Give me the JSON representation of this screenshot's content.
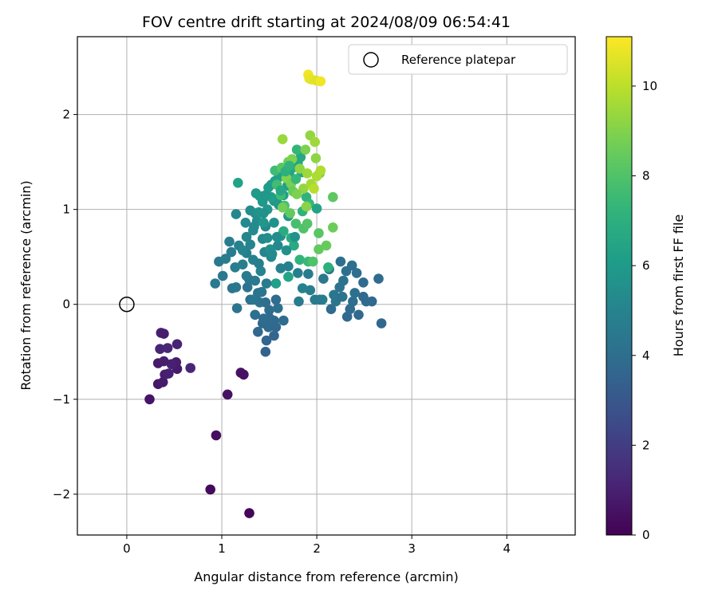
{
  "chart_data": {
    "type": "scatter",
    "title": "FOV centre drift starting at 2024/08/09 06:54:41",
    "xlabel": "Angular distance from reference (arcmin)",
    "ylabel": "Rotation from reference (arcmin)",
    "xlim": [
      -0.52,
      4.72
    ],
    "ylim": [
      -2.43,
      2.82
    ],
    "xticks": [
      0,
      1,
      2,
      3,
      4
    ],
    "yticks": [
      -2,
      -1,
      0,
      1,
      2
    ],
    "xtick_labels": [
      "0",
      "1",
      "2",
      "3",
      "4"
    ],
    "ytick_labels": [
      "−2",
      "−1",
      "0",
      "1",
      "2"
    ],
    "grid": true,
    "legend": {
      "placement": "top-right",
      "entries": [
        "Reference platepar"
      ]
    },
    "reference_point": {
      "x": 0,
      "y": 0,
      "marker": "open-circle"
    },
    "colorbar": {
      "label": "Hours from first FF file",
      "min": 0,
      "max": 11.1,
      "ticks": [
        0,
        2,
        4,
        6,
        8,
        10
      ],
      "tick_labels": [
        "0",
        "2",
        "4",
        "6",
        "8",
        "10"
      ],
      "colormap": "viridis"
    },
    "series": [
      {
        "columns": [
          "x",
          "y",
          "hours"
        ],
        "points": [
          [
            1.29,
            -2.2,
            0.2
          ],
          [
            0.88,
            -1.95,
            0.3
          ],
          [
            0.94,
            -1.38,
            0.4
          ],
          [
            1.06,
            -0.95,
            0.5
          ],
          [
            0.24,
            -1.0,
            0.6
          ],
          [
            1.2,
            -0.72,
            0.6
          ],
          [
            1.23,
            -0.74,
            0.5
          ],
          [
            0.33,
            -0.84,
            0.7
          ],
          [
            0.38,
            -0.82,
            0.8
          ],
          [
            0.4,
            -0.74,
            0.9
          ],
          [
            0.44,
            -0.73,
            1.0
          ],
          [
            0.53,
            -0.68,
            0.8
          ],
          [
            0.52,
            -0.61,
            0.9
          ],
          [
            0.47,
            -0.63,
            1.0
          ],
          [
            0.33,
            -0.62,
            0.8
          ],
          [
            0.39,
            -0.6,
            0.9
          ],
          [
            0.35,
            -0.47,
            1.1
          ],
          [
            0.43,
            -0.46,
            1.2
          ],
          [
            0.53,
            -0.42,
            1.1
          ],
          [
            0.36,
            -0.3,
            1.0
          ],
          [
            0.39,
            -0.31,
            0.9
          ],
          [
            0.67,
            -0.67,
            1.2
          ],
          [
            1.46,
            -0.5,
            3.5
          ],
          [
            1.47,
            -0.38,
            3.6
          ],
          [
            1.55,
            -0.33,
            3.6
          ],
          [
            1.38,
            -0.29,
            3.7
          ],
          [
            1.49,
            -0.24,
            3.8
          ],
          [
            1.55,
            -0.17,
            3.8
          ],
          [
            1.43,
            -0.2,
            3.7
          ],
          [
            1.65,
            -0.17,
            3.9
          ],
          [
            1.5,
            -0.06,
            3.9
          ],
          [
            1.57,
            0.05,
            3.9
          ],
          [
            1.35,
            -0.11,
            4.0
          ],
          [
            1.59,
            -0.04,
            4.1
          ],
          [
            1.3,
            0.05,
            4.1
          ],
          [
            1.38,
            0.12,
            4.2
          ],
          [
            1.27,
            0.18,
            4.2
          ],
          [
            1.16,
            -0.04,
            4.3
          ],
          [
            1.11,
            0.17,
            4.3
          ],
          [
            1.15,
            0.18,
            4.4
          ],
          [
            1.29,
            0.26,
            4.4
          ],
          [
            0.93,
            0.22,
            4.5
          ],
          [
            0.97,
            0.45,
            4.5
          ],
          [
            1.04,
            0.48,
            4.6
          ],
          [
            1.1,
            0.55,
            4.6
          ],
          [
            1.08,
            0.66,
            4.7
          ],
          [
            1.14,
            0.39,
            4.7
          ],
          [
            1.22,
            0.42,
            4.8
          ],
          [
            1.26,
            0.54,
            4.8
          ],
          [
            1.33,
            0.47,
            4.9
          ],
          [
            1.41,
            0.35,
            5.0
          ],
          [
            1.45,
            0.55,
            5.0
          ],
          [
            1.52,
            0.5,
            5.1
          ],
          [
            1.59,
            0.62,
            5.2
          ],
          [
            1.46,
            0.82,
            5.2
          ],
          [
            1.33,
            0.78,
            5.3
          ],
          [
            1.25,
            0.86,
            5.3
          ],
          [
            1.3,
            0.99,
            5.4
          ],
          [
            1.15,
            0.95,
            5.1
          ],
          [
            1.62,
            0.38,
            4.9
          ],
          [
            1.81,
            0.03,
            4.6
          ],
          [
            1.91,
            0.32,
            4.6
          ],
          [
            1.98,
            0.05,
            4.5
          ],
          [
            2.07,
            0.27,
            4.4
          ],
          [
            2.18,
            0.1,
            4.3
          ],
          [
            2.24,
            0.18,
            4.2
          ],
          [
            2.28,
            0.25,
            4.2
          ],
          [
            2.31,
            0.35,
            4.1
          ],
          [
            2.37,
            0.41,
            4.0
          ],
          [
            2.25,
            0.45,
            4.1
          ],
          [
            2.42,
            0.33,
            4.0
          ],
          [
            2.49,
            0.23,
            3.9
          ],
          [
            2.44,
            -0.11,
            3.8
          ],
          [
            2.32,
            -0.13,
            3.8
          ],
          [
            2.15,
            -0.05,
            3.9
          ],
          [
            2.38,
            0.03,
            4.0
          ],
          [
            2.52,
            0.03,
            3.9
          ],
          [
            2.58,
            0.03,
            3.8
          ],
          [
            2.65,
            0.27,
            3.9
          ],
          [
            2.68,
            -0.2,
            3.7
          ],
          [
            2.49,
            0.08,
            3.8
          ],
          [
            2.13,
            0.37,
            4.4
          ],
          [
            2.03,
            0.05,
            4.5
          ],
          [
            1.93,
            0.15,
            4.7
          ],
          [
            1.8,
            0.33,
            4.8
          ],
          [
            1.7,
            0.4,
            4.9
          ],
          [
            1.55,
            0.86,
            5.6
          ],
          [
            1.62,
            0.72,
            5.7
          ],
          [
            1.7,
            0.93,
            5.8
          ],
          [
            1.6,
            1.05,
            5.8
          ],
          [
            1.55,
            1.09,
            5.9
          ],
          [
            1.48,
            1.0,
            5.9
          ],
          [
            1.43,
            1.08,
            5.9
          ],
          [
            1.4,
            1.14,
            6.0
          ],
          [
            1.36,
            1.17,
            6.0
          ],
          [
            1.49,
            1.23,
            6.1
          ],
          [
            1.52,
            1.26,
            6.1
          ],
          [
            1.56,
            1.3,
            6.2
          ],
          [
            1.6,
            1.34,
            6.3
          ],
          [
            1.65,
            1.15,
            6.2
          ],
          [
            1.69,
            1.25,
            6.3
          ],
          [
            1.71,
            1.37,
            6.4
          ],
          [
            1.75,
            1.44,
            6.5
          ],
          [
            1.8,
            1.49,
            6.5
          ],
          [
            1.83,
            1.55,
            6.6
          ],
          [
            1.84,
            1.39,
            6.6
          ],
          [
            1.17,
            1.28,
            6.4
          ],
          [
            1.51,
            0.58,
            5.6
          ],
          [
            1.73,
            0.7,
            6.8
          ],
          [
            1.76,
            0.62,
            6.7
          ],
          [
            1.65,
            0.77,
            6.8
          ],
          [
            1.57,
            0.22,
            6.2
          ],
          [
            1.7,
            0.29,
            6.5
          ],
          [
            2.12,
            0.39,
            7.0
          ],
          [
            1.82,
            0.47,
            7.2
          ],
          [
            1.91,
            0.45,
            7.5
          ],
          [
            1.85,
            0.98,
            7.1
          ],
          [
            1.89,
            1.13,
            7.1
          ],
          [
            1.92,
            1.06,
            7.4
          ],
          [
            2.0,
            1.01,
            6.4
          ],
          [
            1.56,
            1.41,
            7.6
          ],
          [
            1.58,
            1.26,
            7.7
          ],
          [
            1.62,
            1.15,
            7.6
          ],
          [
            1.66,
            1.04,
            7.8
          ],
          [
            1.78,
            0.85,
            7.8
          ],
          [
            1.86,
            0.8,
            8.0
          ],
          [
            1.9,
            0.85,
            8.1
          ],
          [
            1.96,
            0.45,
            8.0
          ],
          [
            2.02,
            0.75,
            8.2
          ],
          [
            2.02,
            0.58,
            8.4
          ],
          [
            2.1,
            0.62,
            8.5
          ],
          [
            2.17,
            0.81,
            8.6
          ],
          [
            2.17,
            1.13,
            8.3
          ],
          [
            2.03,
            1.38,
            8.5
          ],
          [
            1.79,
            1.63,
            7.3
          ],
          [
            1.88,
            1.63,
            8.9
          ],
          [
            1.93,
            1.78,
            9.3
          ],
          [
            1.98,
            1.71,
            9.5
          ],
          [
            1.99,
            1.54,
            9.2
          ],
          [
            1.63,
            1.44,
            8.2
          ],
          [
            1.7,
            1.5,
            8.6
          ],
          [
            1.74,
            1.53,
            8.9
          ],
          [
            1.64,
            1.74,
            9.4
          ],
          [
            1.82,
            1.43,
            9.2
          ],
          [
            1.9,
            1.38,
            9.5
          ],
          [
            1.86,
            1.22,
            9.3
          ],
          [
            1.68,
            1.33,
            9.0
          ],
          [
            1.73,
            1.27,
            8.8
          ],
          [
            1.75,
            1.19,
            8.5
          ],
          [
            1.64,
            1.02,
            8.7
          ],
          [
            1.72,
            0.96,
            8.4
          ],
          [
            1.79,
            1.16,
            8.9
          ],
          [
            1.94,
            1.27,
            9.6
          ],
          [
            2.0,
            1.35,
            9.7
          ],
          [
            2.04,
            1.41,
            9.8
          ],
          [
            1.97,
            1.22,
            9.9
          ],
          [
            1.89,
            1.03,
            9.1
          ],
          [
            1.91,
            2.42,
            10.9
          ],
          [
            1.92,
            2.38,
            10.8
          ],
          [
            1.94,
            2.37,
            10.7
          ],
          [
            1.99,
            2.36,
            10.6
          ],
          [
            2.04,
            2.35,
            10.9
          ],
          [
            1.35,
            0.96,
            5.5
          ],
          [
            1.18,
            0.62,
            4.9
          ],
          [
            1.22,
            0.57,
            5.0
          ],
          [
            1.01,
            0.3,
            4.5
          ],
          [
            1.39,
            0.43,
            4.8
          ],
          [
            1.43,
            0.69,
            5.2
          ],
          [
            1.48,
            0.7,
            5.4
          ],
          [
            1.53,
            0.53,
            5.3
          ],
          [
            1.58,
            0.71,
            5.5
          ],
          [
            1.68,
            0.57,
            5.5
          ],
          [
            1.77,
            0.71,
            5.7
          ],
          [
            1.3,
            0.63,
            5.0
          ],
          [
            1.26,
            0.71,
            5.1
          ],
          [
            1.37,
            0.88,
            5.4
          ],
          [
            1.44,
            0.96,
            5.6
          ],
          [
            1.52,
            1.13,
            6.2
          ],
          [
            1.62,
            1.2,
            6.6
          ],
          [
            1.67,
            1.4,
            7.0
          ],
          [
            1.71,
            1.46,
            7.2
          ],
          [
            1.78,
            1.32,
            7.4
          ],
          [
            1.46,
            1.15,
            5.9
          ],
          [
            1.44,
            0.86,
            5.8
          ],
          [
            1.39,
            0.97,
            5.7
          ],
          [
            1.34,
            0.82,
            5.3
          ],
          [
            1.26,
            0.3,
            4.6
          ],
          [
            1.35,
            0.25,
            4.5
          ],
          [
            1.47,
            0.22,
            4.6
          ],
          [
            1.42,
            0.13,
            4.3
          ],
          [
            1.33,
            0.05,
            4.4
          ],
          [
            1.4,
            0.02,
            4.2
          ],
          [
            1.46,
            0.02,
            4.0
          ],
          [
            1.5,
            -0.14,
            3.8
          ],
          [
            1.57,
            -0.24,
            3.7
          ],
          [
            1.44,
            -0.15,
            3.9
          ],
          [
            1.85,
            0.17,
            4.9
          ],
          [
            2.06,
            0.05,
            4.6
          ],
          [
            2.2,
            0.03,
            4.3
          ],
          [
            2.27,
            0.08,
            4.2
          ],
          [
            2.4,
            0.12,
            4.1
          ],
          [
            2.35,
            -0.05,
            3.9
          ]
        ]
      }
    ]
  }
}
